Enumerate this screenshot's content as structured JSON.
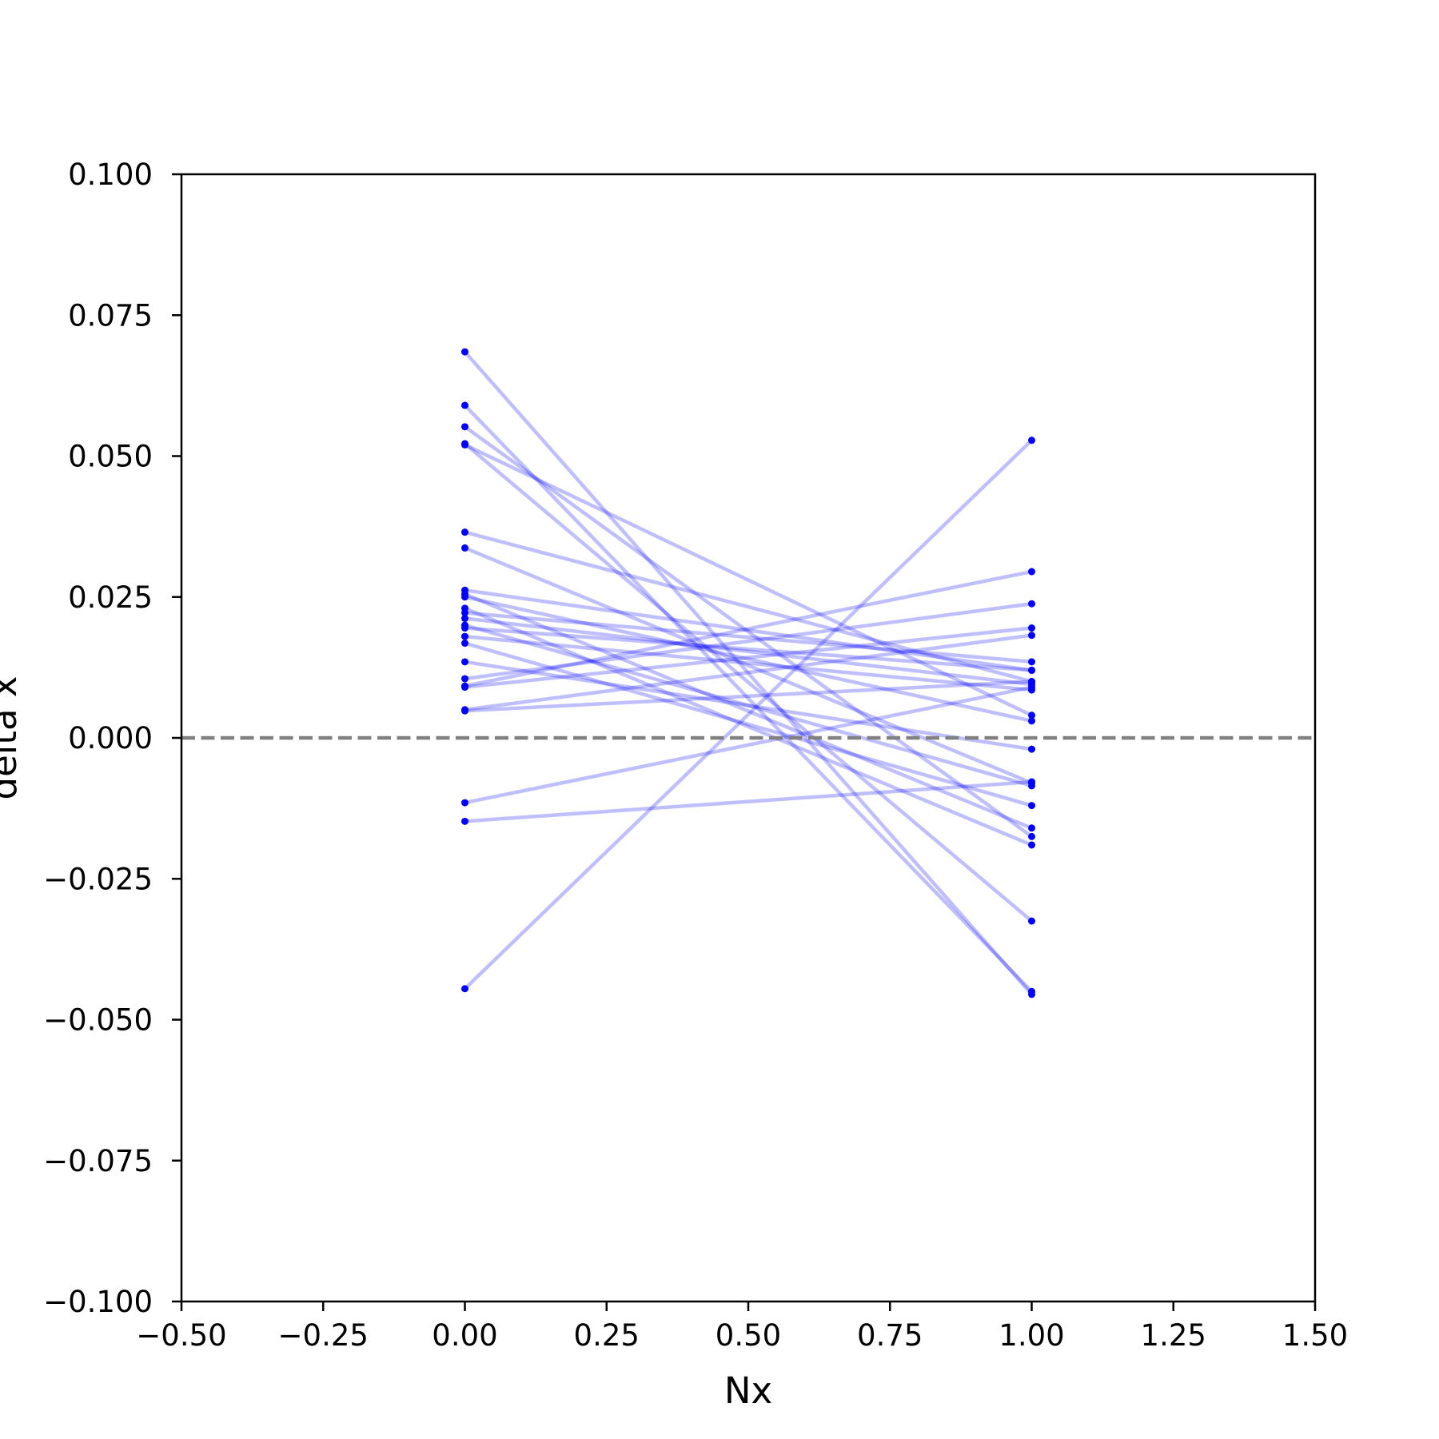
{
  "chart_data": {
    "type": "line",
    "title": "",
    "xlabel": "Nx",
    "ylabel": "delta x",
    "xlim": [
      -0.5,
      1.5
    ],
    "ylim": [
      -0.1,
      0.1
    ],
    "x_ticks": [
      "−0.50",
      "−0.25",
      "0.00",
      "0.25",
      "0.50",
      "0.75",
      "1.00",
      "1.25",
      "1.50"
    ],
    "y_ticks": [
      "−0.100",
      "−0.075",
      "−0.050",
      "−0.025",
      "0.000",
      "0.025",
      "0.050",
      "0.075",
      "0.100"
    ],
    "x_tick_values": [
      -0.5,
      -0.25,
      0,
      0.25,
      0.5,
      0.75,
      1.0,
      1.25,
      1.5
    ],
    "y_tick_values": [
      -0.1,
      -0.075,
      -0.05,
      -0.025,
      0,
      0.025,
      0.05,
      0.075,
      0.1
    ],
    "grid": false,
    "reference_line": {
      "y": 0,
      "style": "dashed",
      "color": "#808080"
    },
    "colors": {
      "points": "#0000ff",
      "lines": "#0000ff",
      "line_opacity": 0.25
    },
    "x": [
      0,
      1
    ],
    "pairs": [
      [
        0.0685,
        -0.0455
      ],
      [
        0.059,
        -0.045
      ],
      [
        0.0552,
        -0.0175
      ],
      [
        0.0522,
        -0.0325
      ],
      [
        0.052,
        0.004
      ],
      [
        0.0365,
        0.01
      ],
      [
        0.0337,
        -0.008
      ],
      [
        0.0262,
        0.012
      ],
      [
        0.0255,
        -0.016
      ],
      [
        0.025,
        0.003
      ],
      [
        0.023,
        -0.019
      ],
      [
        0.0222,
        0.0135
      ],
      [
        0.0212,
        0.0095
      ],
      [
        0.02,
        -0.0085
      ],
      [
        0.0195,
        0.012
      ],
      [
        0.018,
        0.0085
      ],
      [
        0.0168,
        -0.012
      ],
      [
        0.0135,
        -0.002
      ],
      [
        0.0105,
        0.0238
      ],
      [
        0.0092,
        0.0295
      ],
      [
        0.009,
        0.0195
      ],
      [
        0.005,
        0.0182
      ],
      [
        0.0048,
        0.01
      ],
      [
        -0.0115,
        0.009
      ],
      [
        -0.0148,
        -0.0078
      ],
      [
        -0.0445,
        0.0528
      ]
    ]
  }
}
